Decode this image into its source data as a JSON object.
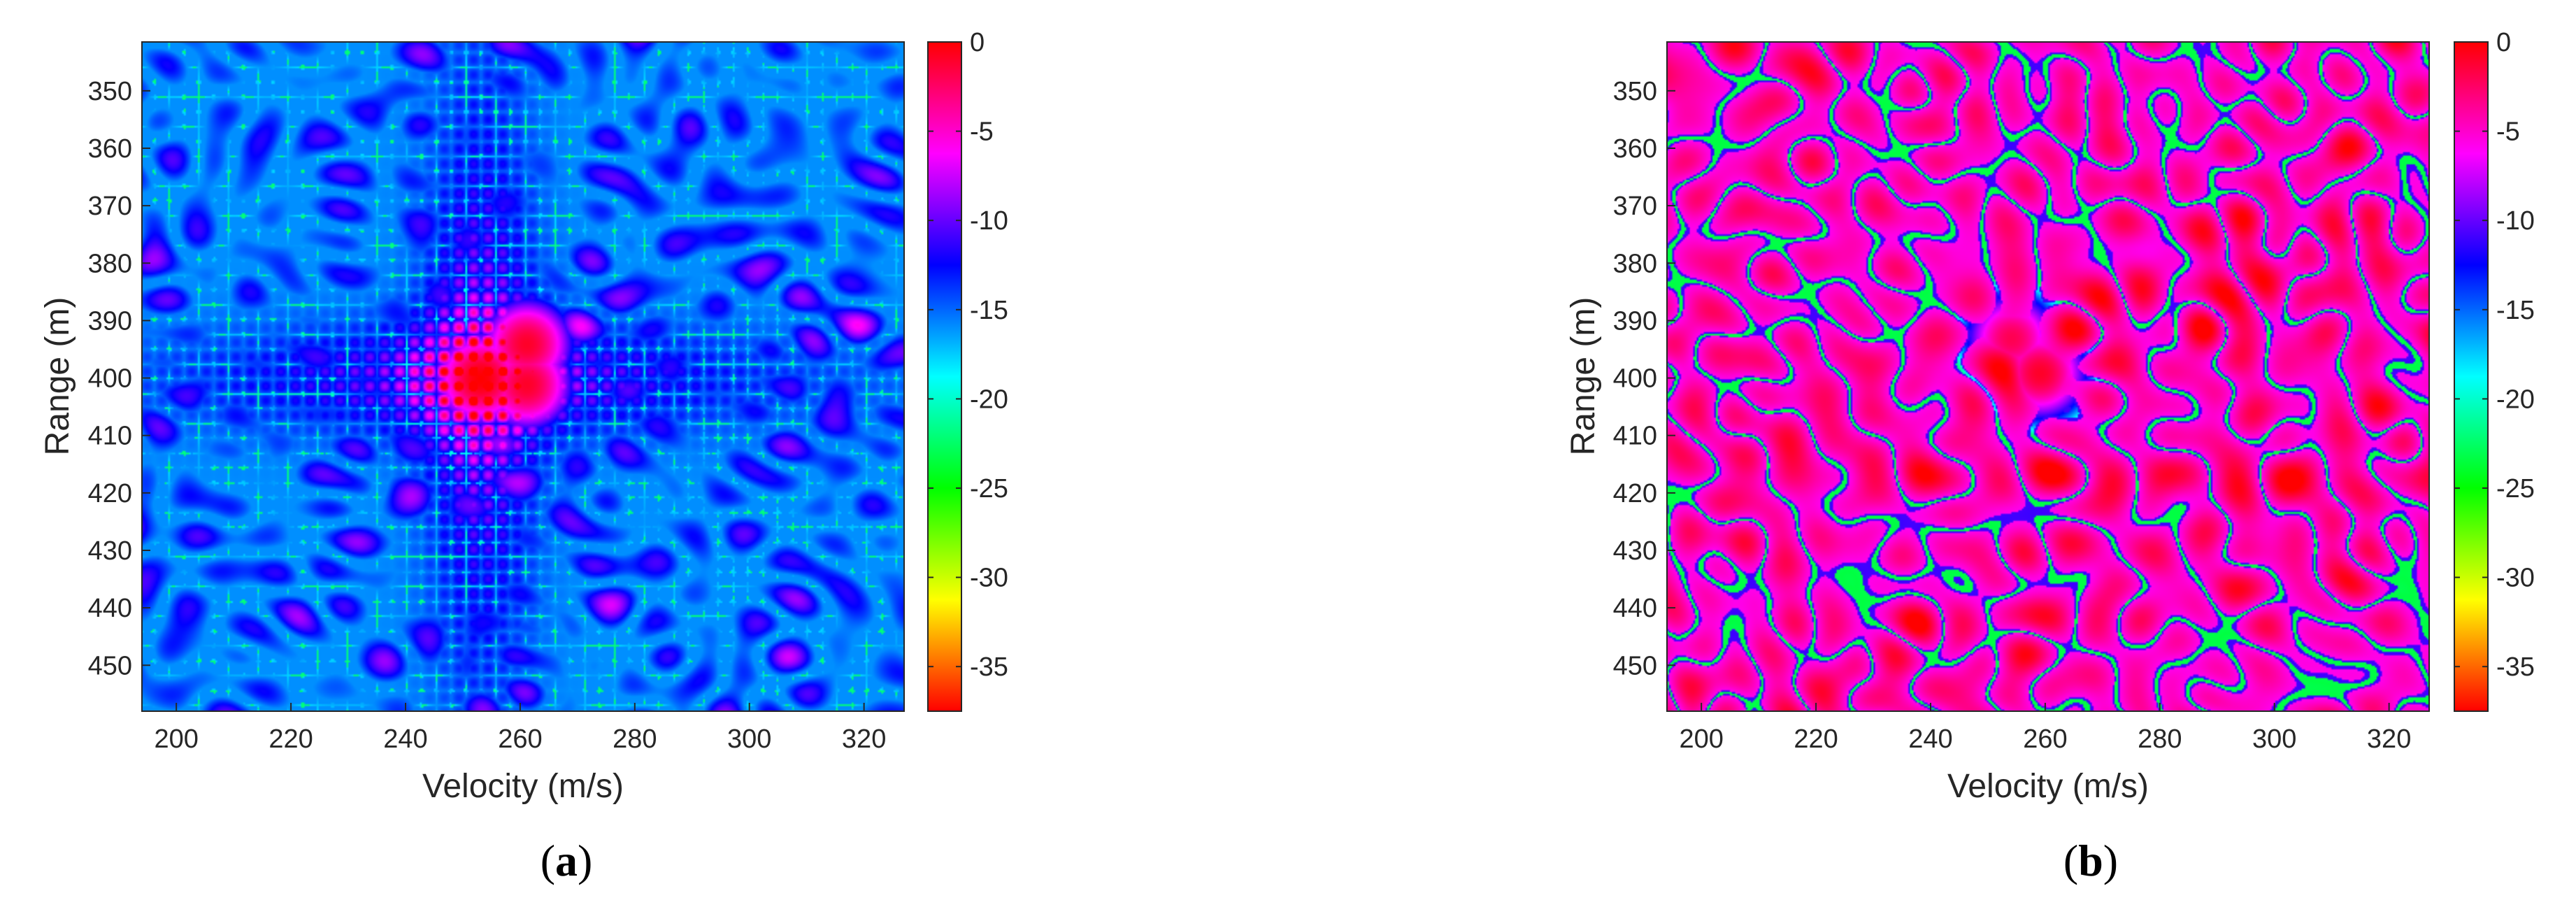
{
  "chart_data": [
    {
      "type": "heatmap",
      "panel_label": {
        "open": "(",
        "letter": "a",
        "close": ")"
      },
      "xlabel": "Velocity (m/s)",
      "ylabel": "Range (m)",
      "xlim": [
        194,
        327
      ],
      "ylim": [
        341.5,
        458
      ],
      "xticks": [
        200,
        220,
        240,
        260,
        280,
        300,
        320
      ],
      "yticks": [
        350,
        360,
        370,
        380,
        390,
        400,
        410,
        420,
        430,
        440,
        450
      ],
      "y_direction": "reversed",
      "colorbar": {
        "min": -37.5,
        "max": 0,
        "ticks": [
          0,
          -5,
          -10,
          -15,
          -20,
          -25,
          -30,
          -35
        ],
        "colormap": "hsv-reversed"
      },
      "background_db": -15,
      "peaks": [
        {
          "x": 253,
          "y": 400,
          "db": 0
        },
        {
          "x": 261,
          "y": 394,
          "db": -1
        },
        {
          "x": 261,
          "y": 401,
          "db": -1
        }
      ],
      "sidelobe_pattern": "cross",
      "texture_seed": 11
    },
    {
      "type": "heatmap",
      "panel_label": {
        "open": "(",
        "letter": "b",
        "close": ")"
      },
      "xlabel": "Velocity (m/s)",
      "ylabel": "Range (m)",
      "xlim": [
        194,
        327
      ],
      "ylim": [
        341.5,
        458
      ],
      "xticks": [
        200,
        220,
        240,
        260,
        280,
        300,
        320
      ],
      "yticks": [
        350,
        360,
        370,
        380,
        390,
        400,
        410,
        420,
        430,
        440,
        450
      ],
      "y_direction": "reversed",
      "colorbar": {
        "min": -37.5,
        "max": 0,
        "ticks": [
          0,
          -5,
          -10,
          -15,
          -20,
          -25,
          -30,
          -35
        ],
        "colormap": "hsv-reversed"
      },
      "background_db": -4,
      "peaks": [
        {
          "x": 259,
          "y": 399,
          "db": -1
        },
        {
          "x": 254,
          "y": 393,
          "db": -2
        }
      ],
      "sidelobe_pattern": "none",
      "texture_seed": 29
    }
  ]
}
